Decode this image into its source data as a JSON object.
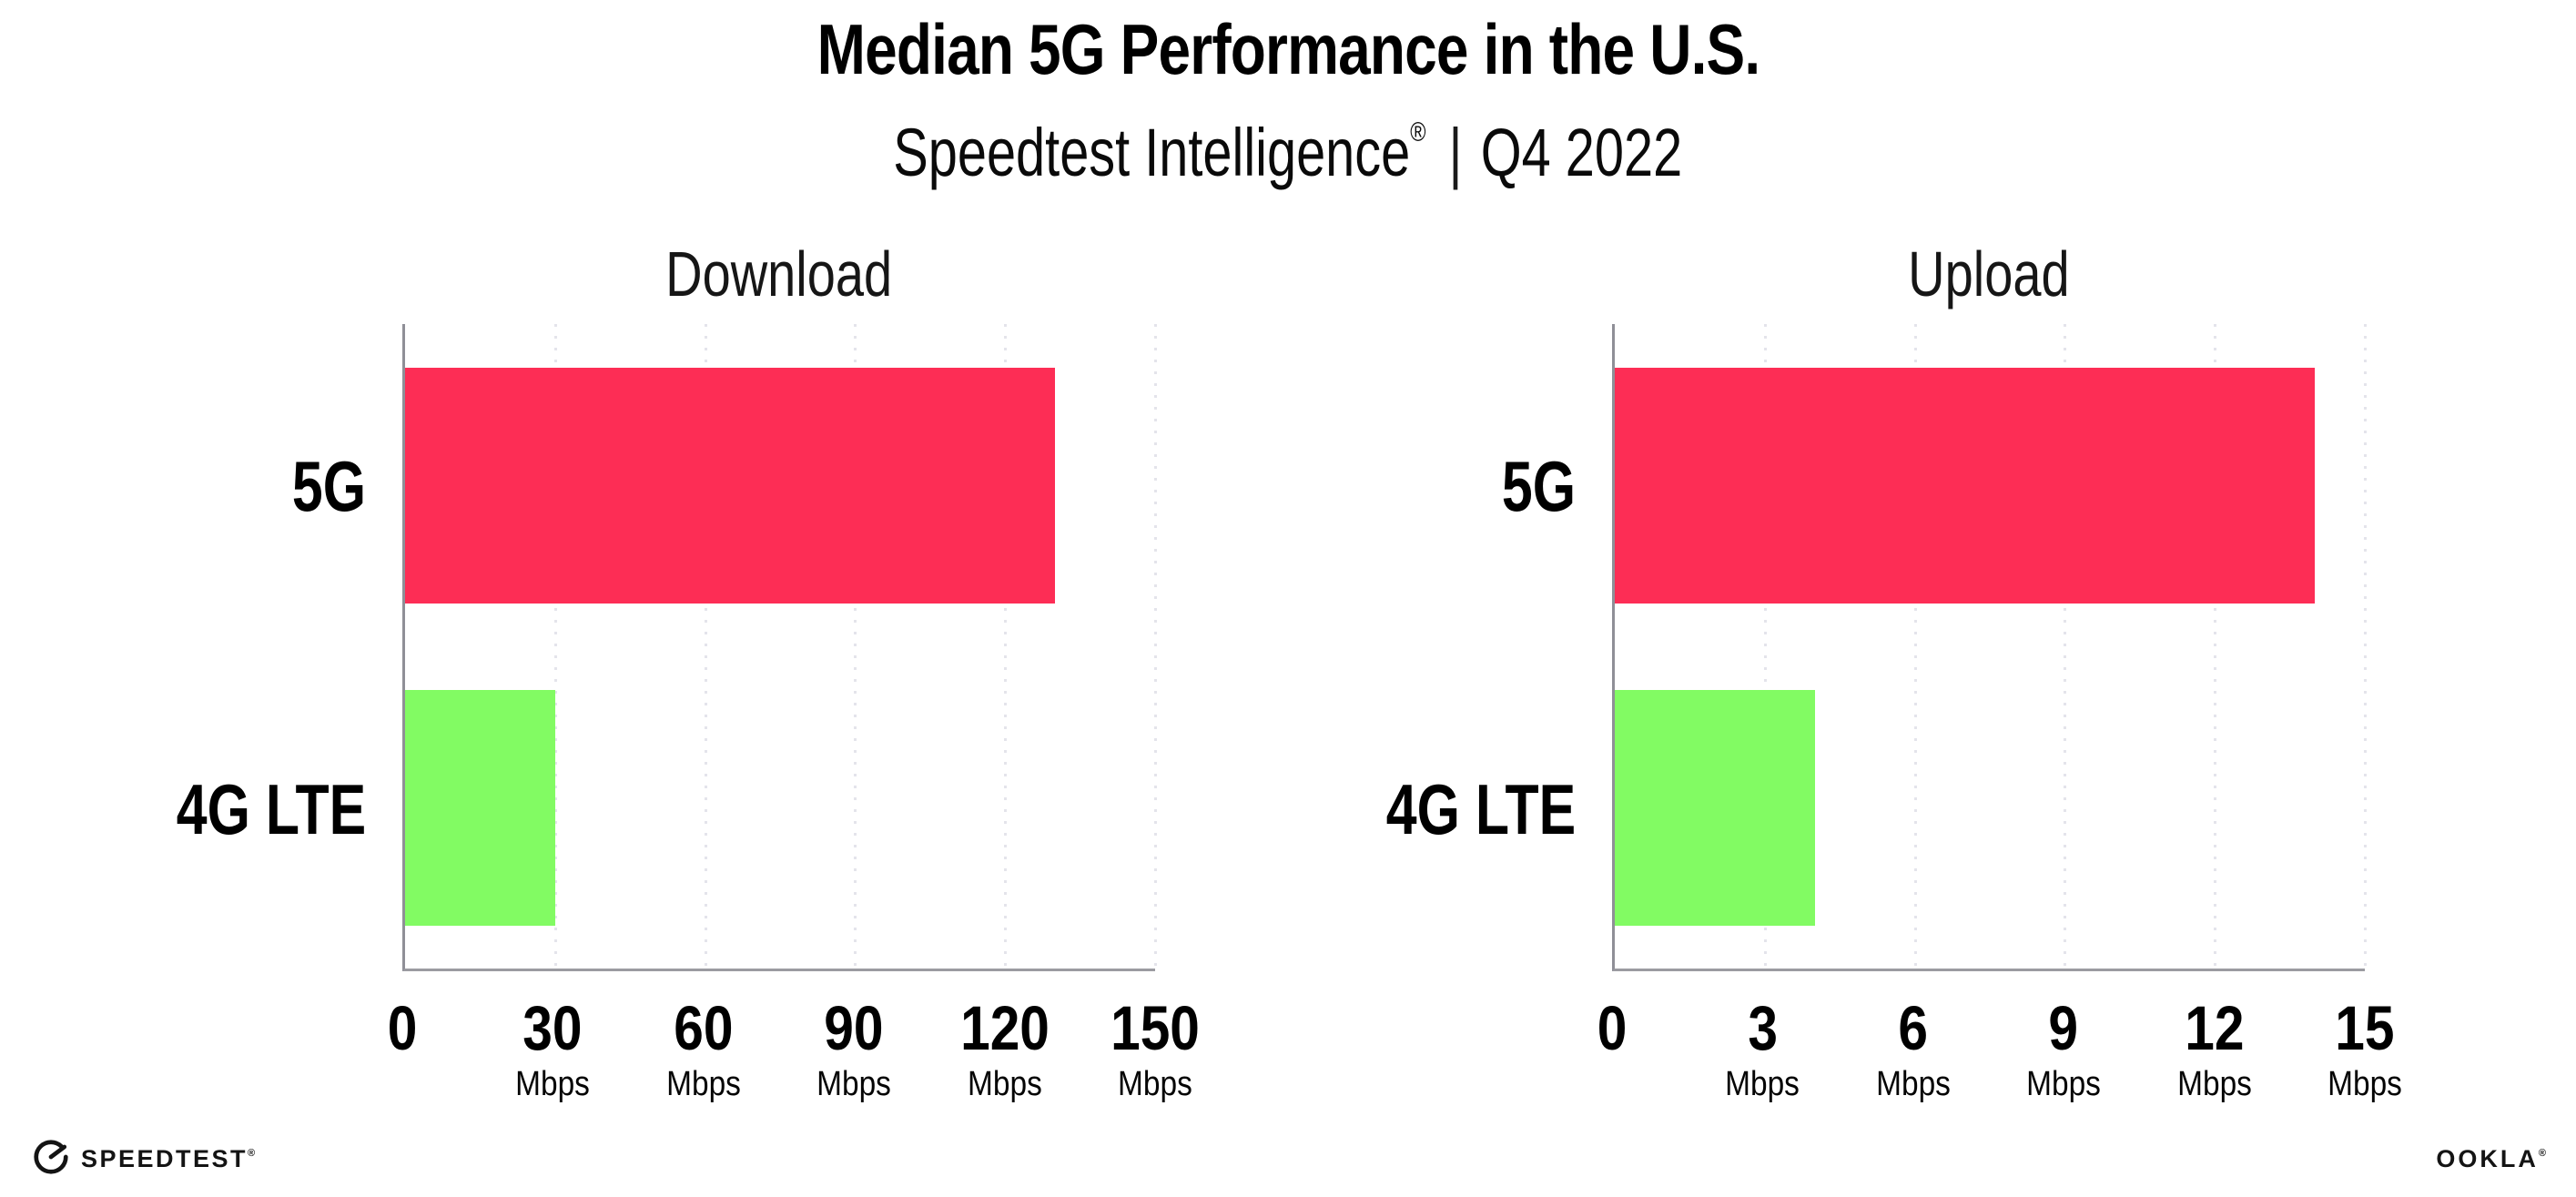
{
  "title": "Median 5G Performance in the U.S.",
  "subtitle": {
    "brand": "Speedtest Intelligence",
    "registered_mark": "®",
    "separator": "|",
    "period": "Q4 2022"
  },
  "chart_data": [
    {
      "type": "bar",
      "orientation": "horizontal",
      "title": "Download",
      "categories": [
        "5G",
        "4G LTE"
      ],
      "values": [
        130,
        30
      ],
      "unit": "Mbps",
      "xlim": [
        0,
        150
      ],
      "xticks": [
        0,
        30,
        60,
        90,
        120,
        150
      ],
      "tick_labels": [
        "0",
        "30",
        "60",
        "90",
        "120",
        "150"
      ],
      "bar_colors": [
        "#FD2D55",
        "#82FB63"
      ],
      "legend": "none",
      "grid": "vertical-dotted"
    },
    {
      "type": "bar",
      "orientation": "horizontal",
      "title": "Upload",
      "categories": [
        "5G",
        "4G LTE"
      ],
      "values": [
        14,
        4
      ],
      "unit": "Mbps",
      "xlim": [
        0,
        15
      ],
      "xticks": [
        0,
        3,
        6,
        9,
        12,
        15
      ],
      "tick_labels": [
        "0",
        "3",
        "6",
        "9",
        "12",
        "15"
      ],
      "bar_colors": [
        "#FD2D55",
        "#82FB63"
      ],
      "legend": "none",
      "grid": "vertical-dotted"
    }
  ],
  "footer": {
    "speedtest_wordmark": "SPEEDTEST",
    "speedtest_mark": "®",
    "ookla_wordmark": "OOKLA",
    "ookla_mark": "®"
  },
  "colors": {
    "bar_5g": "#FD2D55",
    "bar_4g_lte": "#82FB63",
    "axis_line": "#9B9BA1",
    "gridline": "#E4E4EB",
    "title_text": "#000000",
    "chart_title_text": "#161616"
  }
}
